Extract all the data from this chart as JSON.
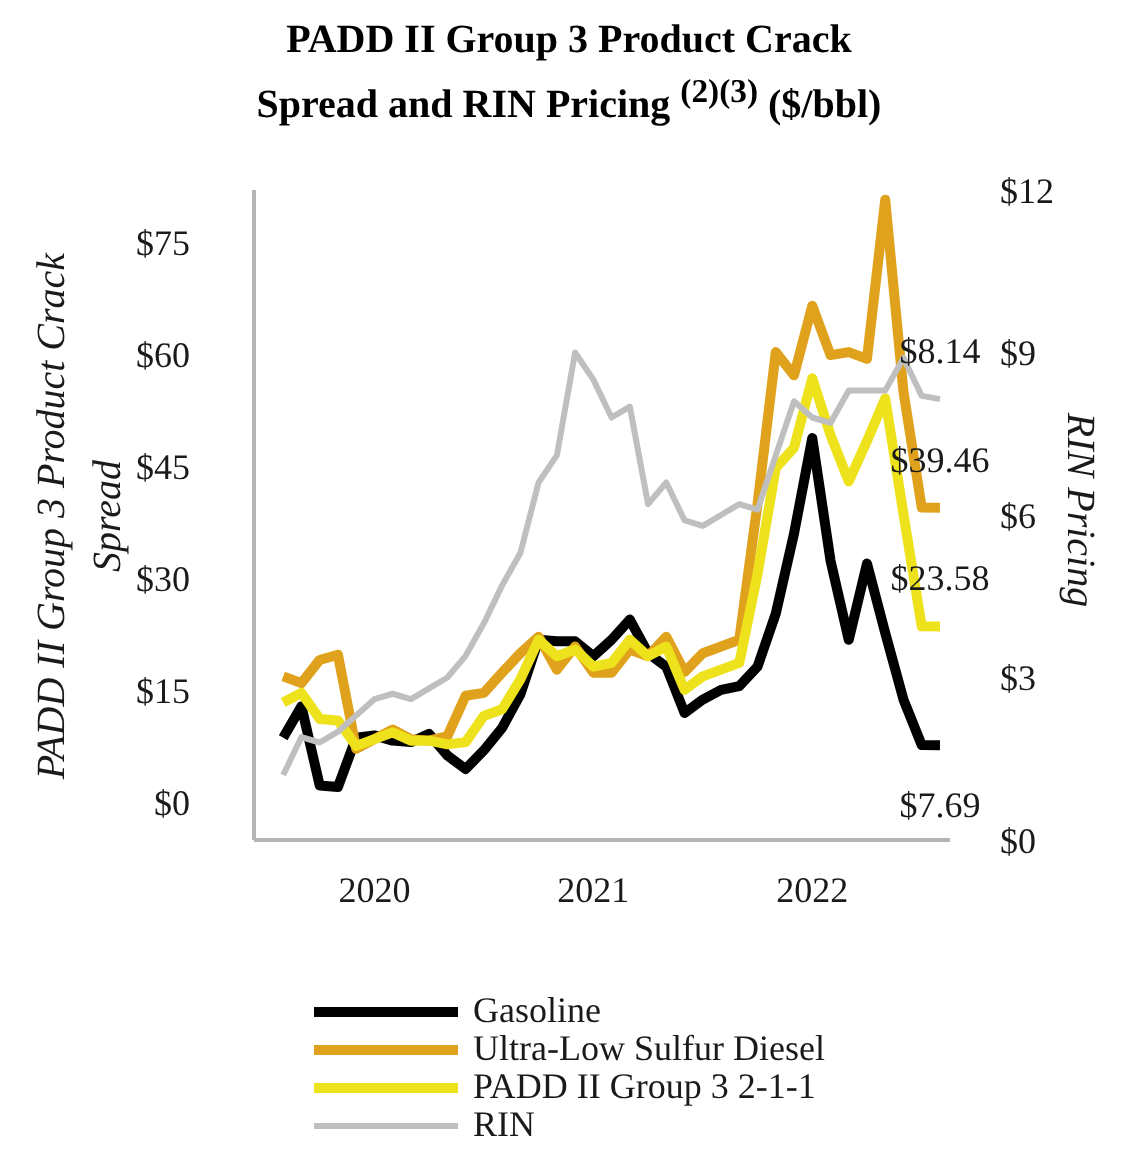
{
  "chart_data": {
    "type": "line",
    "title": "PADD II Group 3 Product Crack Spread and RIN Pricing $^{(2)(3)}$ ($/bbl)",
    "ylabel": "PADD II Group 3 Product Crack Spread",
    "y2label": "RIN Pricing",
    "categories": [
      null,
      null,
      null,
      null,
      null,
      "2020",
      null,
      null,
      null,
      null,
      null,
      null,
      null,
      null,
      null,
      null,
      null,
      "2021",
      null,
      null,
      null,
      null,
      null,
      null,
      null,
      null,
      null,
      null,
      null,
      "2022",
      null,
      null,
      null,
      null,
      null,
      null,
      null
    ],
    "ylim": [
      -5,
      82
    ],
    "yticks": [
      {
        "value": 0,
        "label": "$0"
      },
      {
        "value": 15,
        "label": "$15"
      },
      {
        "value": 30,
        "label": "$30"
      },
      {
        "value": 45,
        "label": "$45"
      },
      {
        "value": 60,
        "label": "$60"
      },
      {
        "value": 75,
        "label": "$75"
      }
    ],
    "y2lim": [
      0,
      12
    ],
    "y2ticks": [
      {
        "value": 0,
        "label": "$0"
      },
      {
        "value": 3,
        "label": "$3"
      },
      {
        "value": 6,
        "label": "$6"
      },
      {
        "value": 9,
        "label": "$9"
      },
      {
        "value": 12,
        "label": "$12"
      }
    ],
    "legend": "bottom",
    "series": [
      {
        "name": "Gasoline",
        "color": "#000000",
        "values": [
          8.7,
          12.9,
          2.3,
          2.1,
          8.7,
          9.0,
          8.3,
          8.1,
          9.2,
          6.3,
          4.5,
          7.0,
          10.0,
          14.5,
          21.8,
          21.6,
          21.6,
          19.6,
          21.8,
          24.5,
          20.0,
          18.2,
          12.0,
          13.8,
          15.1,
          15.6,
          18.2,
          25.3,
          36.0,
          48.8,
          32.4,
          21.8,
          32.0,
          22.7,
          13.8,
          7.7,
          7.69
        ],
        "value_labels": [
          null,
          null,
          null,
          null,
          null,
          null,
          null,
          null,
          null,
          null,
          null,
          null,
          null,
          null,
          null,
          null,
          null,
          null,
          null,
          null,
          null,
          null,
          null,
          null,
          null,
          null,
          null,
          null,
          null,
          null,
          null,
          null,
          null,
          null,
          null,
          null,
          "$7.69"
        ]
      },
      {
        "name": "Ultra-Low Sulfur Diesel",
        "color": "#e0a21c",
        "values": [
          16.9,
          16.0,
          19.1,
          19.8,
          7.2,
          8.5,
          9.8,
          8.5,
          8.3,
          8.9,
          14.3,
          14.7,
          17.4,
          20.0,
          22.2,
          17.8,
          20.9,
          17.4,
          17.4,
          20.5,
          19.6,
          22.2,
          17.5,
          20.0,
          20.9,
          21.8,
          40.0,
          60.3,
          57.2,
          66.5,
          59.9,
          60.3,
          59.4,
          80.7,
          55.0,
          39.5,
          39.46
        ],
        "value_labels": [
          null,
          null,
          null,
          null,
          null,
          null,
          null,
          null,
          null,
          null,
          null,
          null,
          null,
          null,
          null,
          null,
          null,
          null,
          null,
          null,
          null,
          null,
          null,
          null,
          null,
          null,
          null,
          null,
          null,
          null,
          null,
          null,
          null,
          null,
          null,
          null,
          "$39.46"
        ]
      },
      {
        "name": "PADD II Group 3 2-1-1",
        "color": "#ede21b",
        "values": [
          13.4,
          14.7,
          11.2,
          11.0,
          7.6,
          8.5,
          9.4,
          8.3,
          8.3,
          7.8,
          8.1,
          11.6,
          12.5,
          16.5,
          21.8,
          19.6,
          20.5,
          18.2,
          18.7,
          21.8,
          19.6,
          20.9,
          15.1,
          16.9,
          17.8,
          18.7,
          30.6,
          44.8,
          47.5,
          56.8,
          49.2,
          43.0,
          48.4,
          54.1,
          38.6,
          23.6,
          23.58
        ],
        "value_labels": [
          null,
          null,
          null,
          null,
          null,
          null,
          null,
          null,
          null,
          null,
          null,
          null,
          null,
          null,
          null,
          null,
          null,
          null,
          null,
          null,
          null,
          null,
          null,
          null,
          null,
          null,
          null,
          null,
          null,
          null,
          null,
          null,
          null,
          null,
          null,
          null,
          "$23.58"
        ]
      },
      {
        "name": "RIN",
        "color": "#bfbfbf",
        "axis": "y2",
        "values": [
          1.2,
          1.9,
          1.8,
          2.0,
          2.3,
          2.6,
          2.7,
          2.6,
          2.8,
          3.0,
          3.4,
          4.0,
          4.7,
          5.3,
          6.6,
          7.1,
          9.0,
          8.5,
          7.8,
          8.0,
          6.2,
          6.6,
          5.9,
          5.8,
          6.0,
          6.2,
          6.1,
          7.1,
          8.1,
          7.8,
          7.7,
          8.3,
          8.3,
          8.3,
          8.9,
          8.2,
          8.14
        ],
        "value_labels": [
          null,
          null,
          null,
          null,
          null,
          null,
          null,
          null,
          null,
          null,
          null,
          null,
          null,
          null,
          null,
          null,
          null,
          null,
          null,
          null,
          null,
          null,
          null,
          null,
          null,
          null,
          null,
          null,
          null,
          null,
          null,
          null,
          null,
          null,
          null,
          null,
          "$8.14"
        ]
      }
    ]
  }
}
